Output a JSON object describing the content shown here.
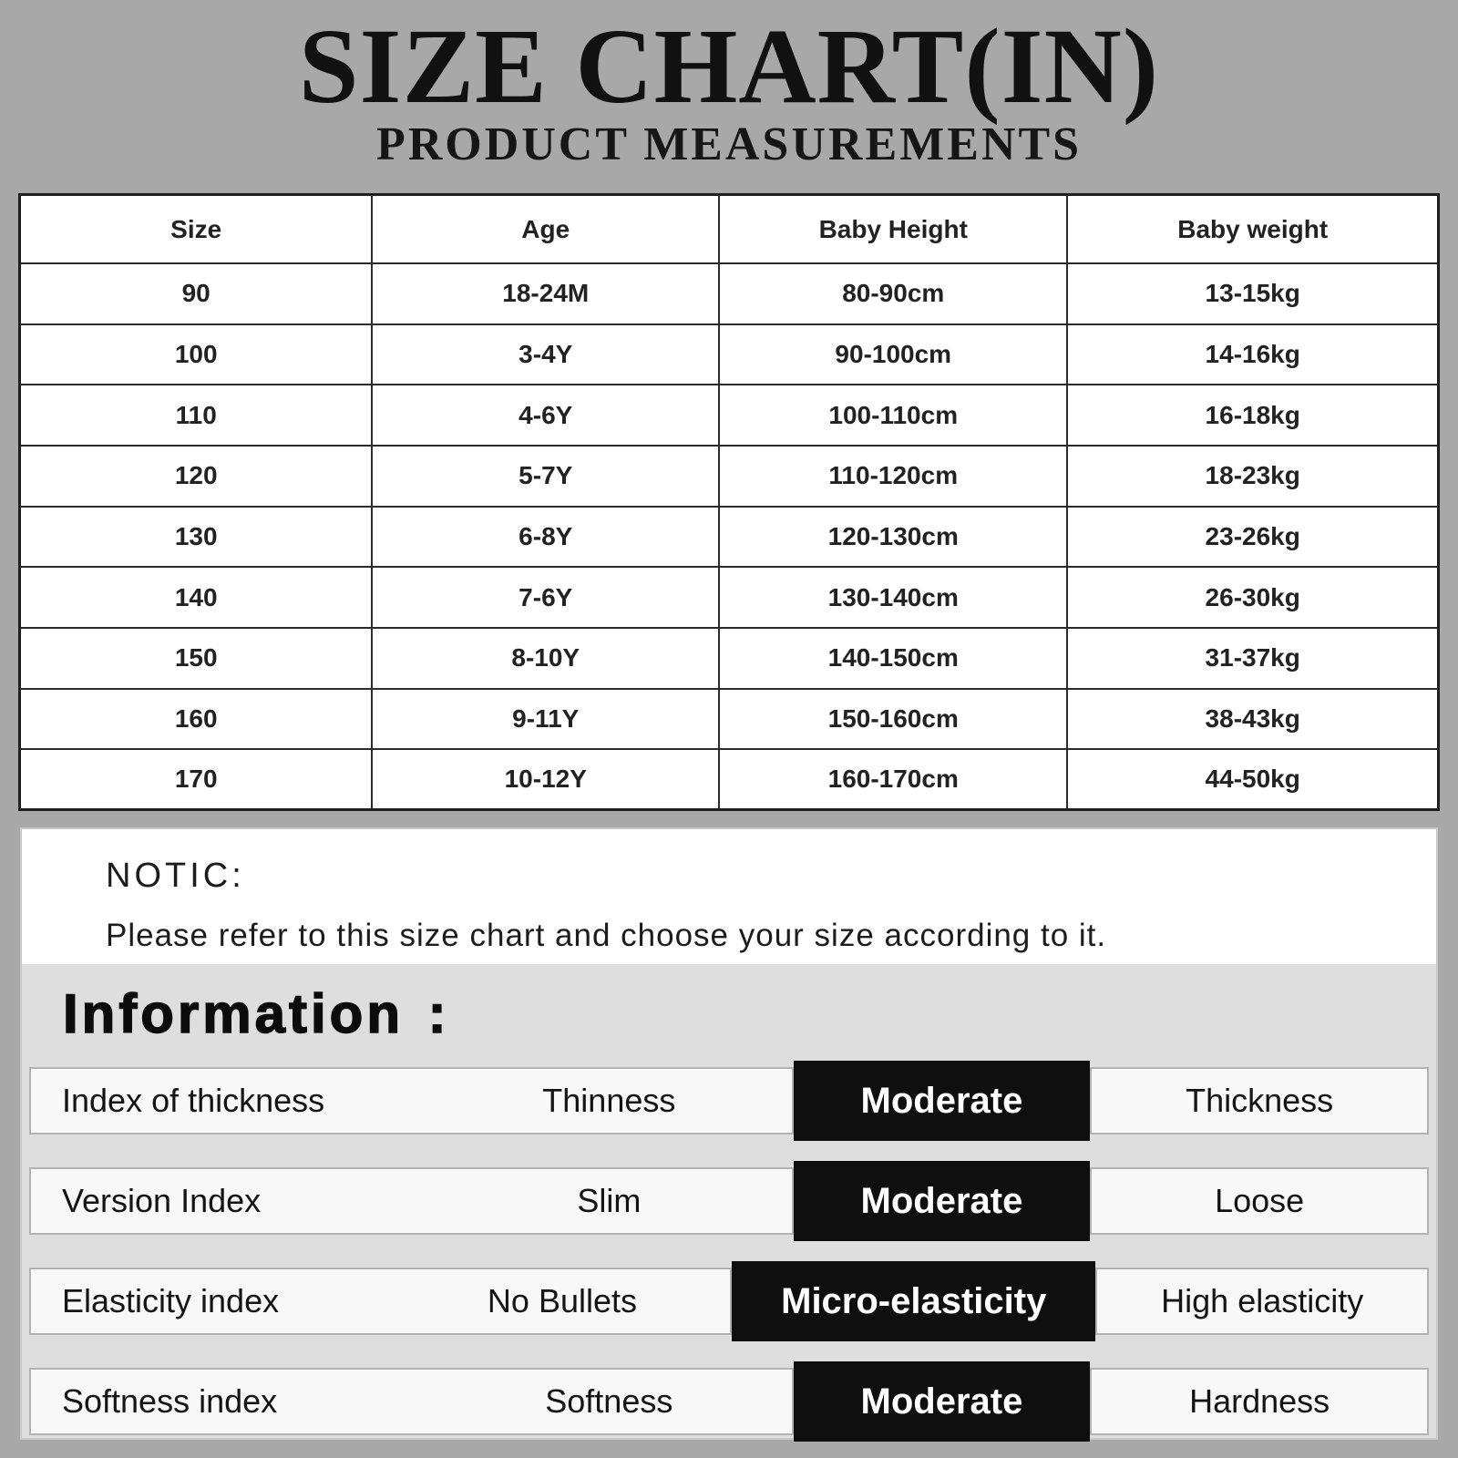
{
  "header": {
    "title": "SIZE CHART(IN)",
    "subtitle": "PRODUCT MEASUREMENTS"
  },
  "table": {
    "columns": [
      "Size",
      "Age",
      "Baby Height",
      "Baby weight"
    ],
    "rows": [
      [
        "90",
        "18-24M",
        "80-90cm",
        "13-15kg"
      ],
      [
        "100",
        "3-4Y",
        "90-100cm",
        "14-16kg"
      ],
      [
        "110",
        "4-6Y",
        "100-110cm",
        "16-18kg"
      ],
      [
        "120",
        "5-7Y",
        "110-120cm",
        "18-23kg"
      ],
      [
        "130",
        "6-8Y",
        "120-130cm",
        "23-26kg"
      ],
      [
        "140",
        "7-6Y",
        "130-140cm",
        "26-30kg"
      ],
      [
        "150",
        "8-10Y",
        "140-150cm",
        "31-37kg"
      ],
      [
        "160",
        "9-11Y",
        "150-160cm",
        "38-43kg"
      ],
      [
        "170",
        "10-12Y",
        "160-170cm",
        "44-50kg"
      ]
    ]
  },
  "notice": {
    "heading": "NOTIC:",
    "text": "Please refer to this size chart and choose your size according to it."
  },
  "information": {
    "heading": "Information :",
    "rows": [
      {
        "label": "Index of thickness",
        "left": "Thinness",
        "selected": "Moderate",
        "right": "Thickness"
      },
      {
        "label": "Version Index",
        "left": "Slim",
        "selected": "Moderate",
        "right": "Loose"
      },
      {
        "label": "Elasticity index",
        "left": "No Bullets",
        "selected": "Micro-elasticity",
        "right": "High elasticity"
      },
      {
        "label": "Softness index",
        "left": "Softness",
        "selected": "Moderate",
        "right": "Hardness"
      }
    ]
  },
  "colors": {
    "page_bg": "#a8a8a8",
    "panel_bg": "#dedede",
    "highlight_bg": "#0f0f0f",
    "highlight_text": "#ffffff"
  }
}
